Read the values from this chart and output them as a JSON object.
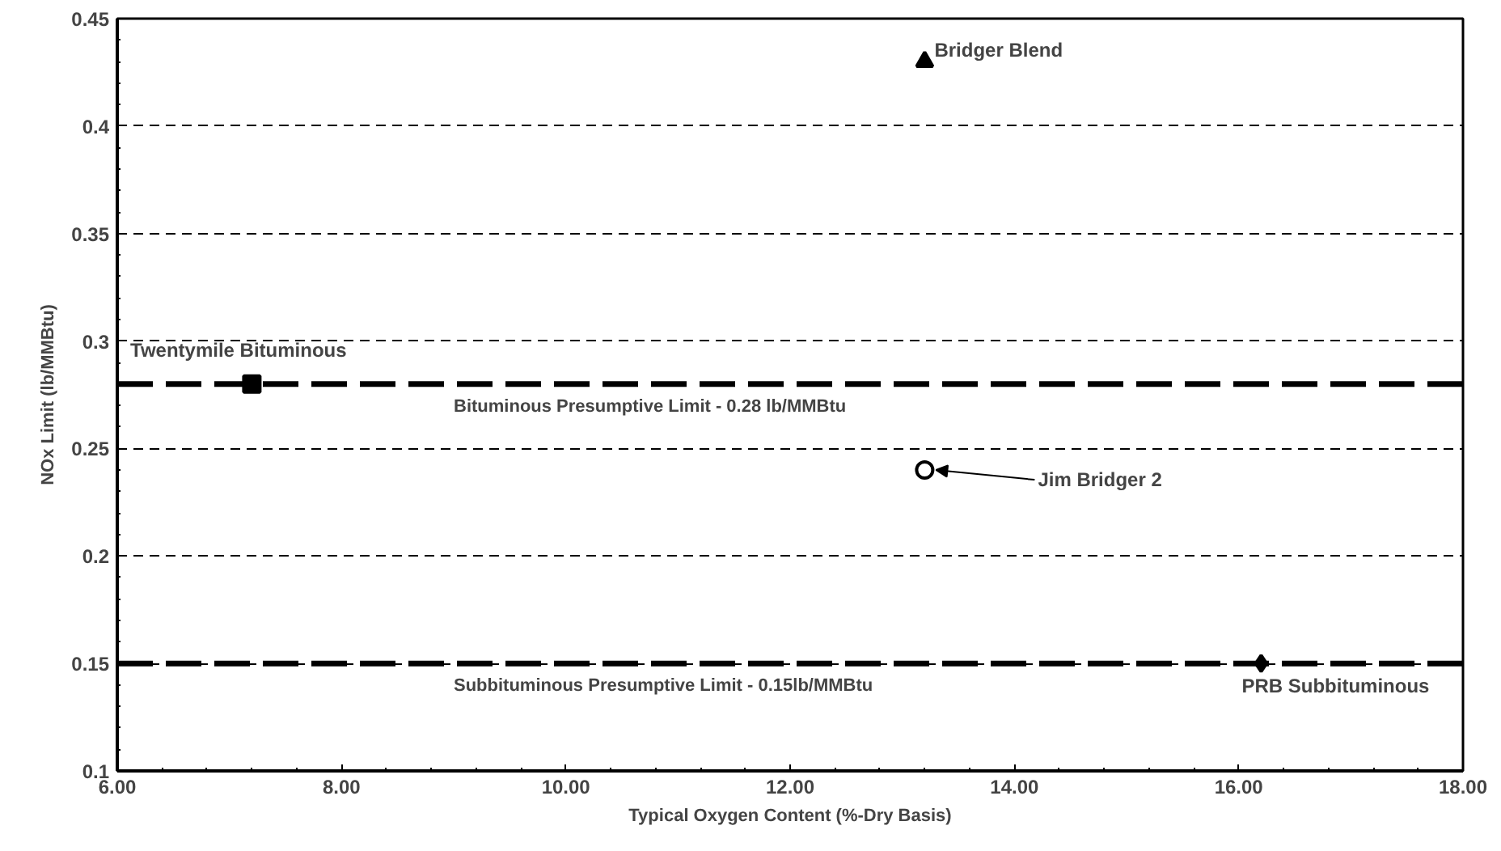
{
  "chart_data": {
    "type": "scatter",
    "xlabel": "Typical Oxygen Content (%-Dry Basis)",
    "ylabel": "NOx Limit (lb/MMBtu)",
    "xlim": [
      6,
      18
    ],
    "ylim": [
      0.1,
      0.45
    ],
    "xticks": [
      {
        "value": 6,
        "label": "6.00"
      },
      {
        "value": 8,
        "label": "8.00"
      },
      {
        "value": 10,
        "label": "10.00"
      },
      {
        "value": 12,
        "label": "12.00"
      },
      {
        "value": 14,
        "label": "14.00"
      },
      {
        "value": 16,
        "label": "16.00"
      },
      {
        "value": 18,
        "label": "18.00"
      }
    ],
    "yticks": [
      0.1,
      0.15,
      0.2,
      0.25,
      0.3,
      0.35,
      0.4,
      0.45
    ],
    "grid": "y",
    "series": [
      {
        "name": "Bridger Blend",
        "color": "#000000",
        "marker": "triangle",
        "x": [
          13.2
        ],
        "values": [
          0.43
        ]
      },
      {
        "name": "Twentymile Bituminous",
        "color": "#000000",
        "marker": "square",
        "x": [
          7.2
        ],
        "values": [
          0.28
        ]
      },
      {
        "name": "Jim Bridger 2",
        "color": "#000000",
        "marker": "circle",
        "x": [
          13.2
        ],
        "values": [
          0.24
        ]
      },
      {
        "name": "PRB Subbituminous",
        "color": "#000000",
        "marker": "diamond",
        "x": [
          16.2
        ],
        "values": [
          0.15
        ]
      }
    ],
    "ref_lines": [
      {
        "axis": "y",
        "value": 0.28,
        "label": "Bituminous Presumptive Limit - 0.28 lb/MMBtu",
        "color": "#000000",
        "line_style": "dashed"
      },
      {
        "axis": "y",
        "value": 0.15,
        "label": "Subbituminous Presumptive Limit - 0.15lb/MMBtu",
        "color": "#000000",
        "line_style": "dashed"
      }
    ]
  }
}
